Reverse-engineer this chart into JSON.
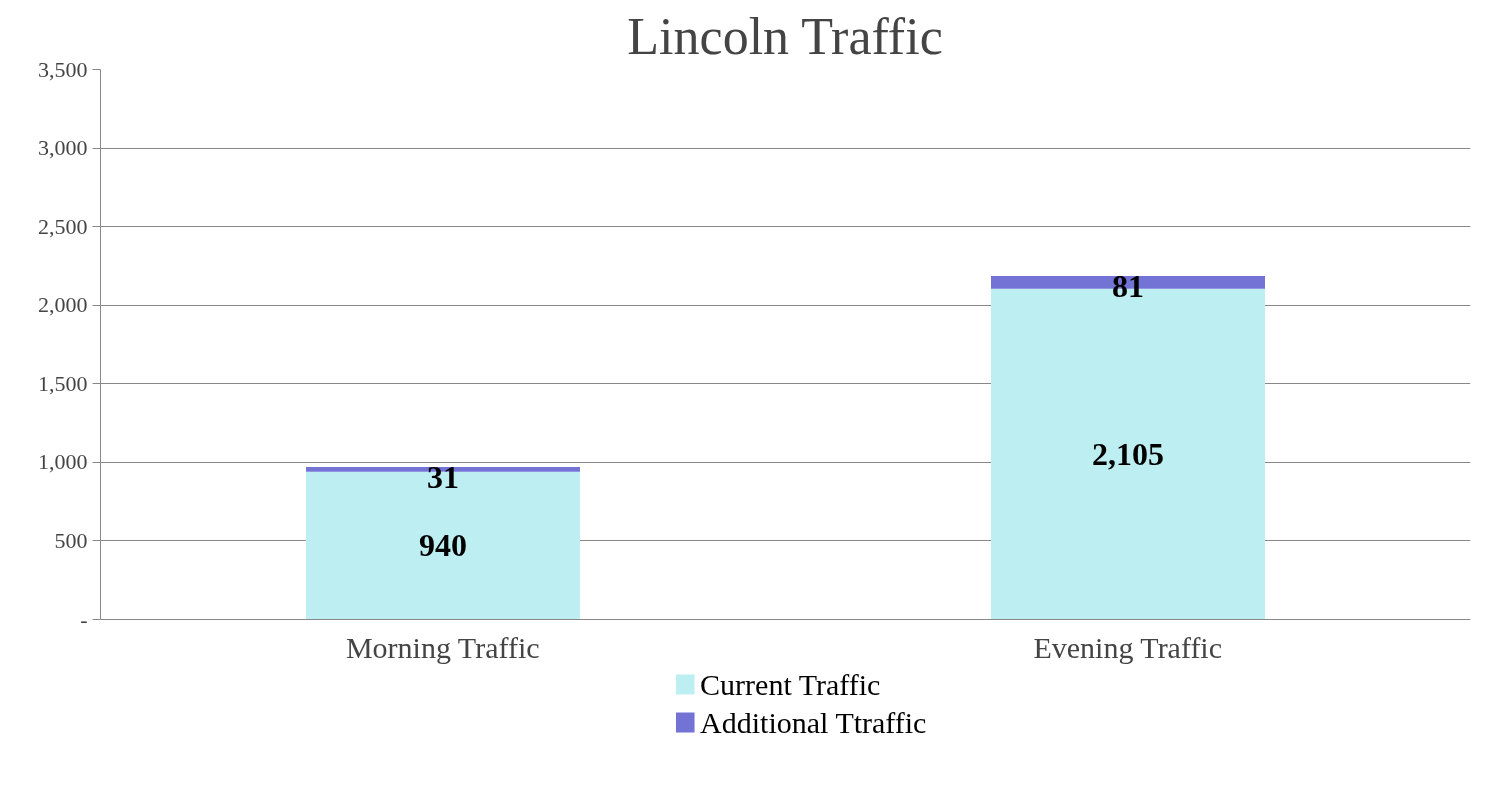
{
  "chart_data": {
    "type": "bar",
    "title": "Lincoln Traffic",
    "stacked": true,
    "categories": [
      "Morning Traffic",
      "Evening Traffic"
    ],
    "series": [
      {
        "name": "Current Traffic",
        "color": "#bdeff2",
        "values": [
          940,
          2105
        ],
        "value_labels": [
          "940",
          "2,105"
        ]
      },
      {
        "name": "Additional Ttraffic",
        "color": "#7373d6",
        "values": [
          31,
          81
        ],
        "value_labels": [
          "31",
          "81"
        ]
      }
    ],
    "ylim": [
      0,
      3500
    ],
    "yticks": [
      {
        "value": 0,
        "label": "-"
      },
      {
        "value": 500,
        "label": "500"
      },
      {
        "value": 1000,
        "label": "1,000"
      },
      {
        "value": 1500,
        "label": "1,500"
      },
      {
        "value": 2000,
        "label": "2,000"
      },
      {
        "value": 2500,
        "label": "2,500"
      },
      {
        "value": 3000,
        "label": "3,000"
      },
      {
        "value": 3500,
        "label": "3,500"
      }
    ],
    "grid": "y",
    "legend": "bottom"
  }
}
